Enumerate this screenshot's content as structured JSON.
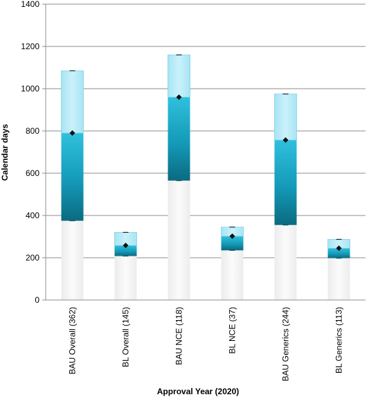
{
  "chart_data": {
    "type": "bar",
    "subtype": "stacked-floating-box",
    "title": "",
    "xlabel": "Approval Year (2020)",
    "ylabel": "Calendar days",
    "ylim": [
      0,
      1400
    ],
    "yticks": [
      0,
      200,
      400,
      600,
      800,
      1000,
      1200,
      1400
    ],
    "grid": true,
    "legend": "none",
    "categories": [
      "BAU Overall (362)",
      "BL Overall (145)",
      "BAU NCE (118)",
      "BL NCE (37)",
      "BAU Generics (244)",
      "BL Generics (113)"
    ],
    "series": [
      {
        "role": "q1",
        "values": [
          375,
          208,
          565,
          235,
          355,
          198
        ]
      },
      {
        "role": "median",
        "values": [
          790,
          258,
          960,
          302,
          757,
          245
        ]
      },
      {
        "role": "q3",
        "values": [
          1085,
          320,
          1160,
          345,
          975,
          287
        ]
      }
    ],
    "colors": {
      "lower_box": "#1aa6c4",
      "lower_box_dark": "#0d6f86",
      "upper_box": "#b6e9f6",
      "upper_box_edge": "#7fd3e8",
      "base_bar": "#f4f4f4",
      "marker": "#111111",
      "grid": "#8c8c8c",
      "axis": "#8c8c8c"
    }
  }
}
